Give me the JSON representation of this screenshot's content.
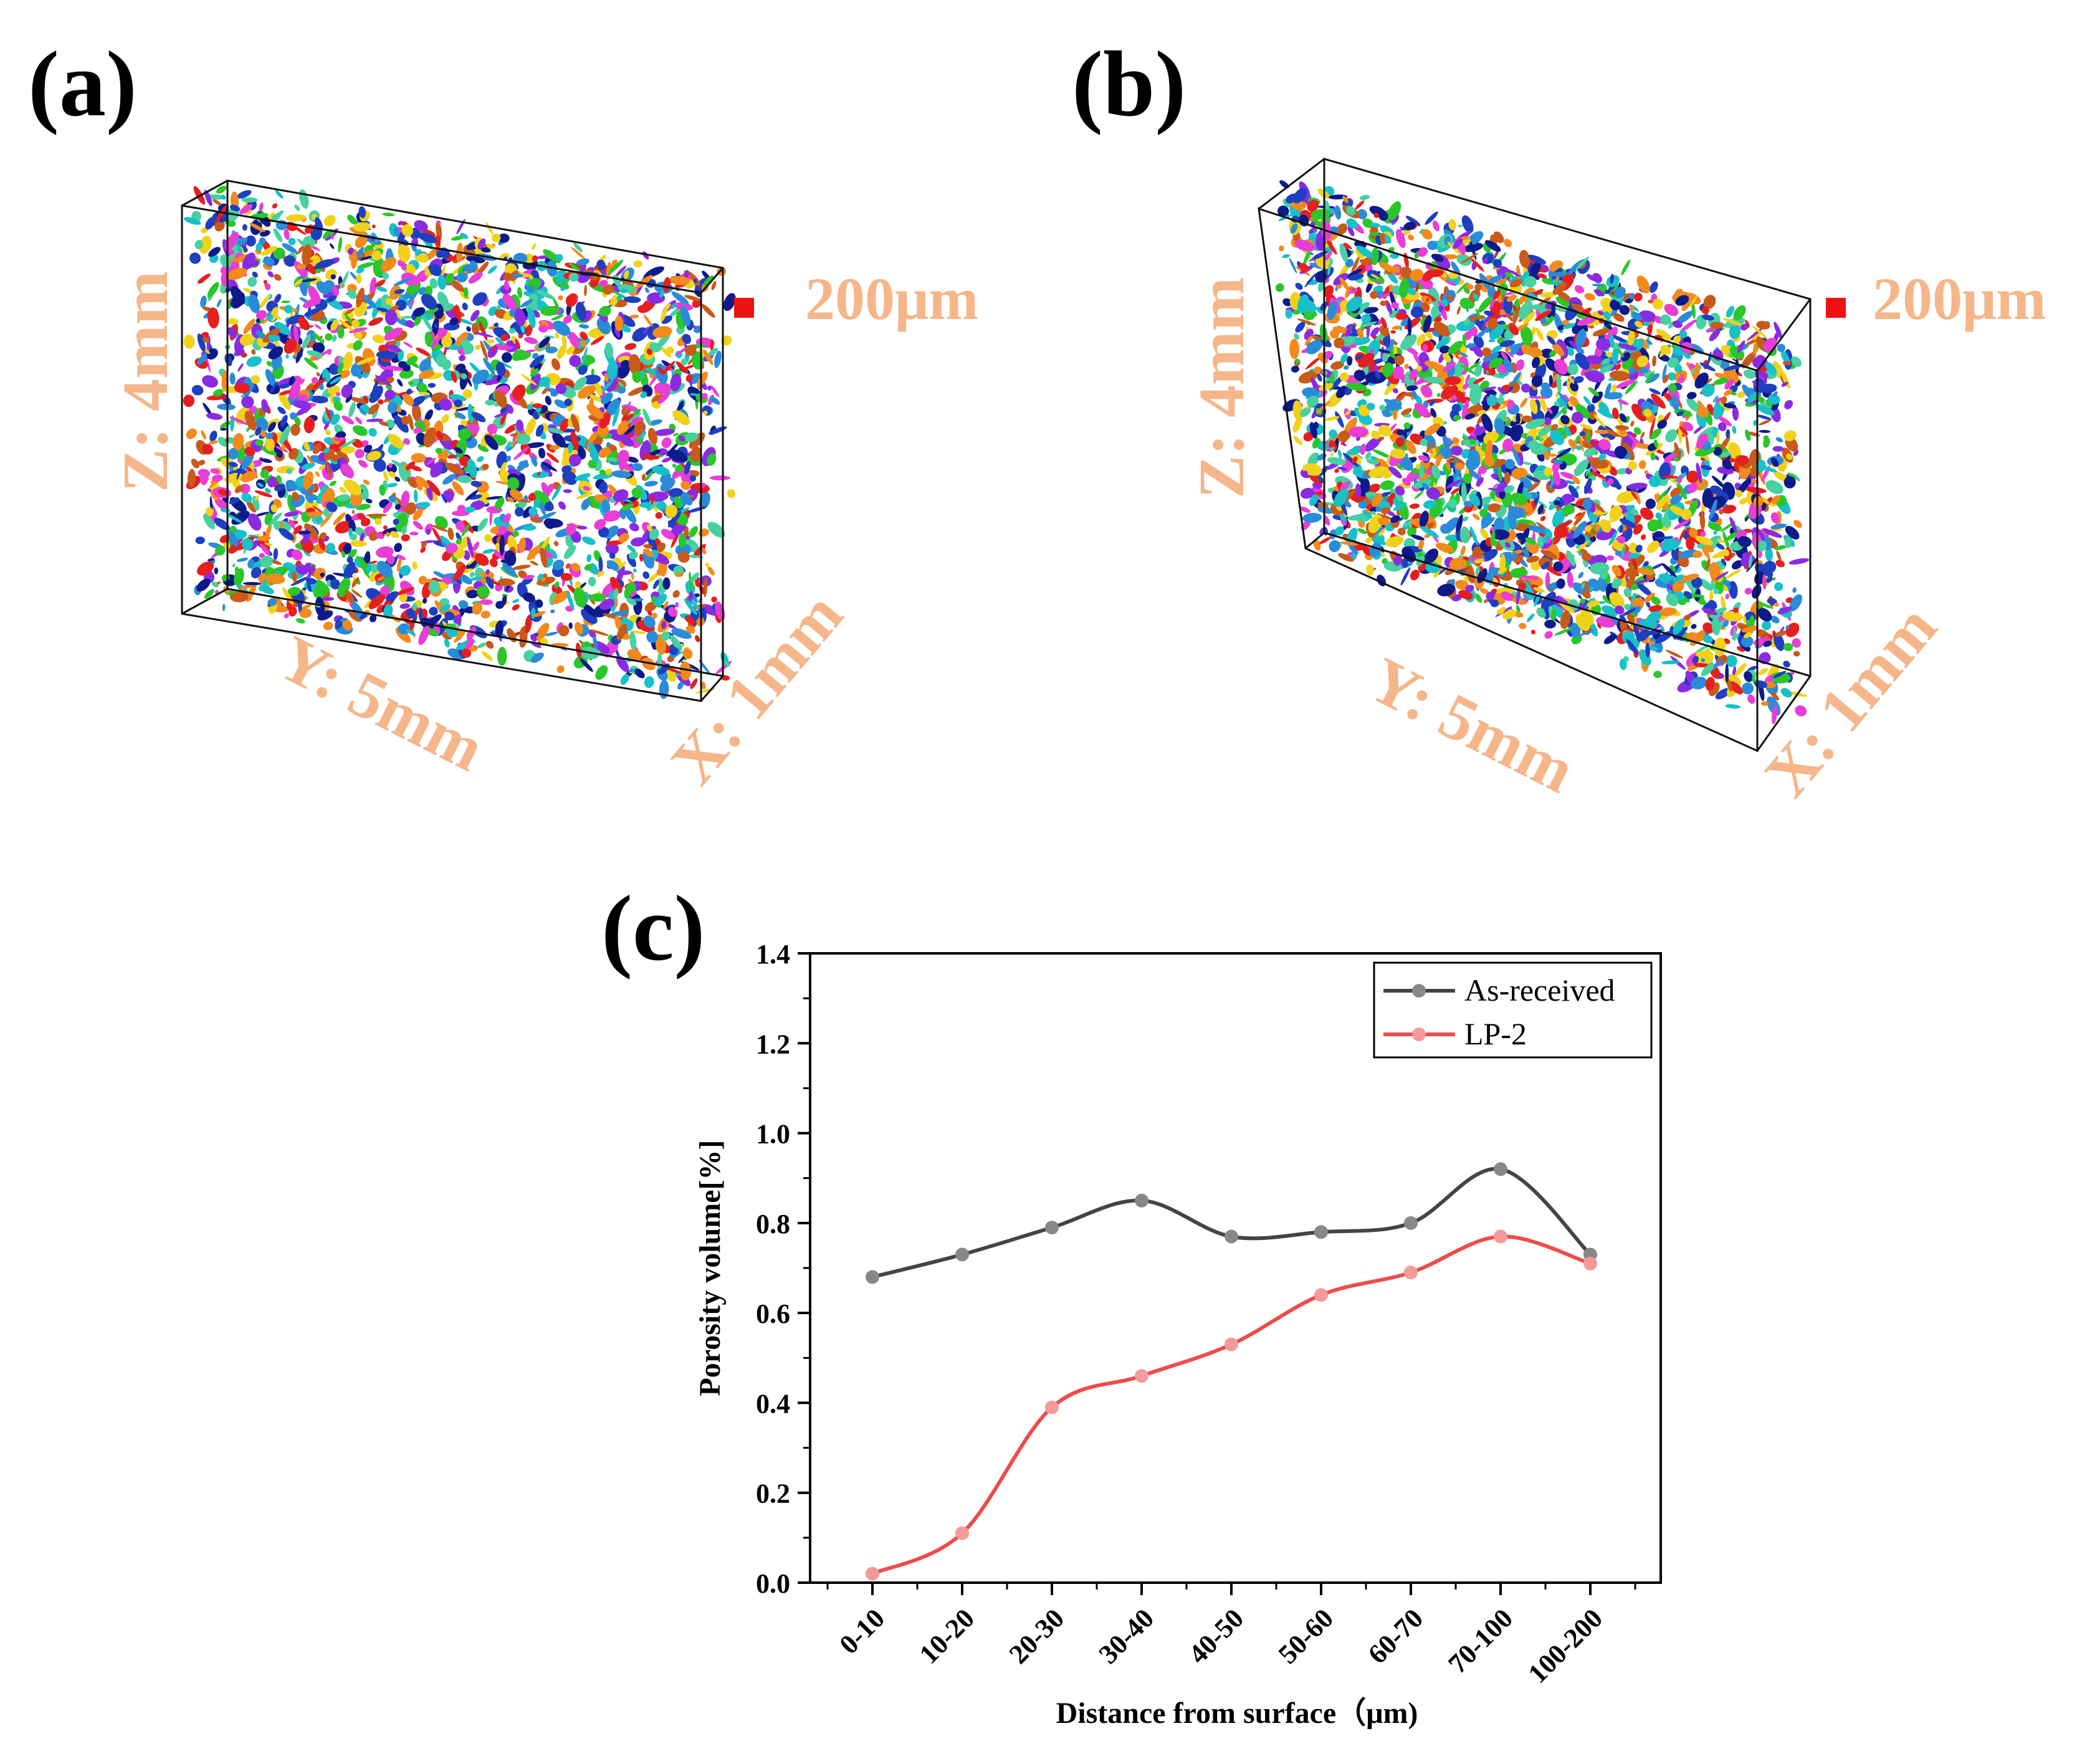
{
  "panels": {
    "a": {
      "label": "(a)",
      "dim_z": "Z: 4mm",
      "dim_y": "Y: 5mm",
      "dim_x": "X: 1mm",
      "scale_label": "200μm"
    },
    "b": {
      "label": "(b)",
      "dim_z": "Z: 4mm",
      "dim_y": "Y: 5mm",
      "dim_x": "X: 1mm",
      "scale_label": "200μm"
    },
    "c": {
      "label": "(c)"
    }
  },
  "colors": {
    "dimension_label": "#f5b68a",
    "scale_marker": "#ee1111",
    "as_received": "#444444",
    "as_received_point": "#888888",
    "lp2": "#ee4b4b",
    "lp2_point": "#f49a9a",
    "pores": [
      "#1e3fbf",
      "#2a8bd9",
      "#18c0c8",
      "#2ac62a",
      "#f0d21a",
      "#f28a1c",
      "#e51f1f",
      "#e83ed6",
      "#8a2be2",
      "#0d1a8a",
      "#47d0a0",
      "#c85a1a"
    ]
  },
  "chart_data": {
    "type": "line",
    "title": "",
    "xlabel": "Distance from surface（μm)",
    "ylabel": "Porosity volume[%]",
    "categories": [
      "0-10",
      "10-20",
      "20-30",
      "30-40",
      "40-50",
      "50-60",
      "60-70",
      "70-100",
      "100-200"
    ],
    "ylim": [
      0,
      1.4
    ],
    "yticks": [
      "0.0",
      "0.2",
      "0.4",
      "0.6",
      "0.8",
      "1.0",
      "1.2",
      "1.4"
    ],
    "legend_position": "top-right",
    "series": [
      {
        "name": "As-received",
        "values": [
          0.68,
          0.73,
          0.79,
          0.85,
          0.77,
          0.78,
          0.8,
          0.92,
          0.73
        ]
      },
      {
        "name": "LP-2",
        "values": [
          0.02,
          0.11,
          0.39,
          0.46,
          0.53,
          0.64,
          0.69,
          0.77,
          0.71
        ]
      }
    ]
  }
}
